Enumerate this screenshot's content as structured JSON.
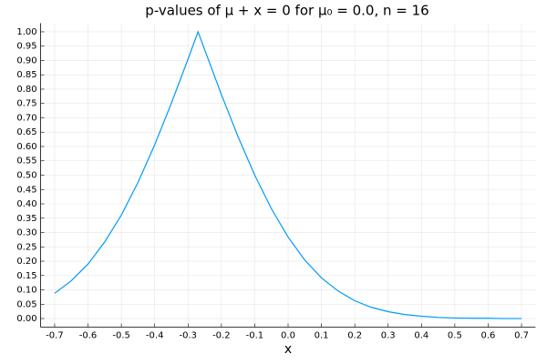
{
  "chart_data": {
    "type": "line",
    "title": "p-values of μ + x = 0 for μ₀ = 0.0,  n = 16",
    "xlabel": "x",
    "x": [
      -0.7,
      -0.65,
      -0.6,
      -0.55,
      -0.5,
      -0.45,
      -0.4,
      -0.35,
      -0.3,
      -0.27,
      -0.25,
      -0.2,
      -0.15,
      -0.1,
      -0.05,
      0,
      0.05,
      0.1,
      0.15,
      0.2,
      0.25,
      0.3,
      0.35,
      0.4,
      0.45,
      0.5,
      0.55,
      0.6,
      0.65,
      0.7
    ],
    "values": [
      0.088,
      0.132,
      0.19,
      0.267,
      0.361,
      0.475,
      0.606,
      0.751,
      0.905,
      1,
      0.937,
      0.781,
      0.634,
      0.5,
      0.383,
      0.284,
      0.204,
      0.142,
      0.096,
      0.062,
      0.039,
      0.024,
      0.014,
      0.008,
      0.004,
      0.002,
      0.001,
      0.001,
      0,
      0
    ],
    "color": "#009af9",
    "xlim": [
      -0.742,
      0.742
    ],
    "ylim": [
      -0.03,
      1.03
    ],
    "xticks": [
      -0.7,
      -0.6,
      -0.5,
      -0.4,
      -0.3,
      -0.2,
      -0.1,
      {
        "value": 0,
        "label": "0.0"
      },
      0.1,
      0.2,
      0.3,
      0.4,
      0.5,
      0.6,
      0.7
    ],
    "yticks": [
      {
        "value": 0,
        "label": "0.00"
      },
      {
        "value": 0.05,
        "label": "0.05"
      },
      {
        "value": 0.1,
        "label": "0.10"
      },
      {
        "value": 0.15,
        "label": "0.15"
      },
      {
        "value": 0.2,
        "label": "0.20"
      },
      {
        "value": 0.25,
        "label": "0.25"
      },
      {
        "value": 0.3,
        "label": "0.30"
      },
      {
        "value": 0.35,
        "label": "0.35"
      },
      {
        "value": 0.4,
        "label": "0.40"
      },
      {
        "value": 0.45,
        "label": "0.45"
      },
      {
        "value": 0.5,
        "label": "0.50"
      },
      {
        "value": 0.55,
        "label": "0.55"
      },
      {
        "value": 0.6,
        "label": "0.60"
      },
      {
        "value": 0.65,
        "label": "0.65"
      },
      {
        "value": 0.7,
        "label": "0.70"
      },
      {
        "value": 0.75,
        "label": "0.75"
      },
      {
        "value": 0.8,
        "label": "0.80"
      },
      {
        "value": 0.85,
        "label": "0.85"
      },
      {
        "value": 0.9,
        "label": "0.90"
      },
      {
        "value": 0.95,
        "label": "0.95"
      },
      {
        "value": 1,
        "label": "1.00"
      }
    ],
    "grid": true
  }
}
